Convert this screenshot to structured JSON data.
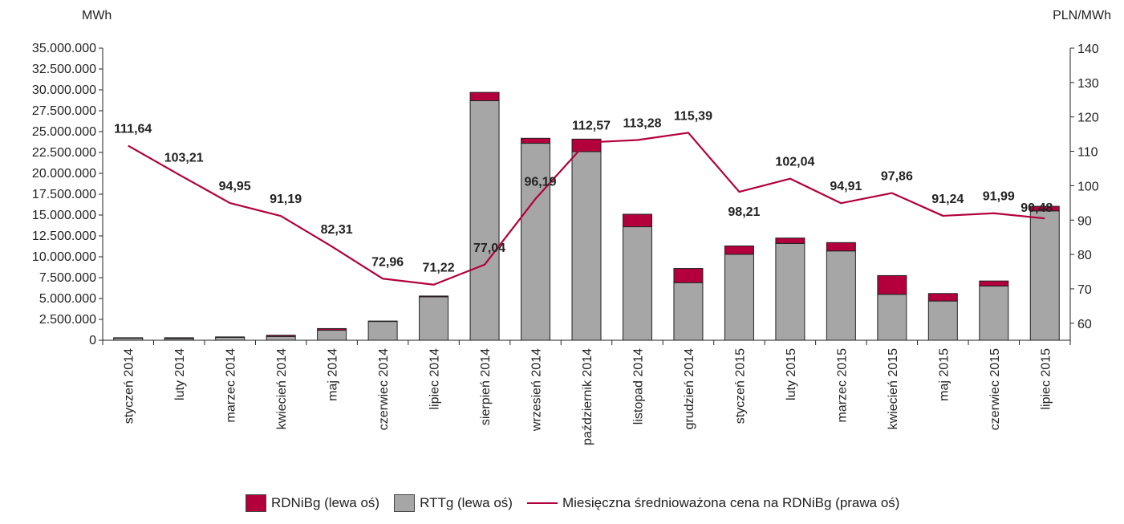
{
  "chart_data": {
    "type": "bar",
    "stacked": true,
    "categories": [
      "styczeń 2014",
      "luty 2014",
      "marzec 2014",
      "kwiecień 2014",
      "maj 2014",
      "czerwiec 2014",
      "lipiec 2014",
      "sierpień 2014",
      "wrzesień 2014",
      "październik 2014",
      "listopad 2014",
      "grudzień 2014",
      "styczeń 2015",
      "luty 2015",
      "marzec 2015",
      "kwiecień 2015",
      "maj 2015",
      "czerwiec 2015",
      "lipiec 2015"
    ],
    "left_axis": {
      "unit": "MWh",
      "ylim": [
        0,
        35000000
      ],
      "ticks": [
        "0",
        "2.500.000",
        "5.000.000",
        "7.500.000",
        "10.000.000",
        "12.500.000",
        "15.000.000",
        "17.500.000",
        "20.000.000",
        "22.500.000",
        "25.000.000",
        "27.500.000",
        "30.000.000",
        "32.500.000",
        "35.000.000"
      ]
    },
    "right_axis": {
      "unit": "PLN/MWh",
      "ticks": [
        "60",
        "70",
        "80",
        "90",
        "100",
        "110",
        "120",
        "130",
        "140"
      ]
    },
    "series": [
      {
        "name": "RTTg (lewa oś)",
        "kind": "bar",
        "axis": "left",
        "color": "#a6a6a6",
        "values": [
          250000,
          200000,
          350000,
          450000,
          1200000,
          2250000,
          5200000,
          28700000,
          23600000,
          22600000,
          13600000,
          6900000,
          10300000,
          11600000,
          10700000,
          5500000,
          4700000,
          6500000,
          15500000
        ]
      },
      {
        "name": "RDNiBg (lewa oś)",
        "kind": "bar",
        "axis": "left",
        "color": "#b3003c",
        "values": [
          50000,
          100000,
          50000,
          150000,
          200000,
          50000,
          100000,
          1000000,
          600000,
          1500000,
          1500000,
          1700000,
          1000000,
          650000,
          1000000,
          2250000,
          900000,
          600000,
          550000
        ]
      },
      {
        "name": "Miesięczna średnioważona cena na RDNiBg (prawa oś)",
        "kind": "line",
        "axis": "right",
        "color": "#b3003c",
        "values": [
          111.64,
          103.21,
          94.95,
          91.19,
          82.31,
          72.96,
          71.22,
          77.04,
          96.19,
          112.57,
          113.28,
          115.39,
          98.21,
          102.04,
          94.91,
          97.86,
          91.24,
          91.99,
          90.48
        ],
        "labels": [
          "111,64",
          "103,21",
          "94,95",
          "91,19",
          "82,31",
          "72,96",
          "71,22",
          "77,04",
          "96,19",
          "112,57",
          "113,28",
          "115,39",
          "98,21",
          "102,04",
          "94,91",
          "97,86",
          "91,24",
          "91,99",
          "90,48"
        ]
      }
    ],
    "grid": false,
    "legend_position": "bottom"
  }
}
